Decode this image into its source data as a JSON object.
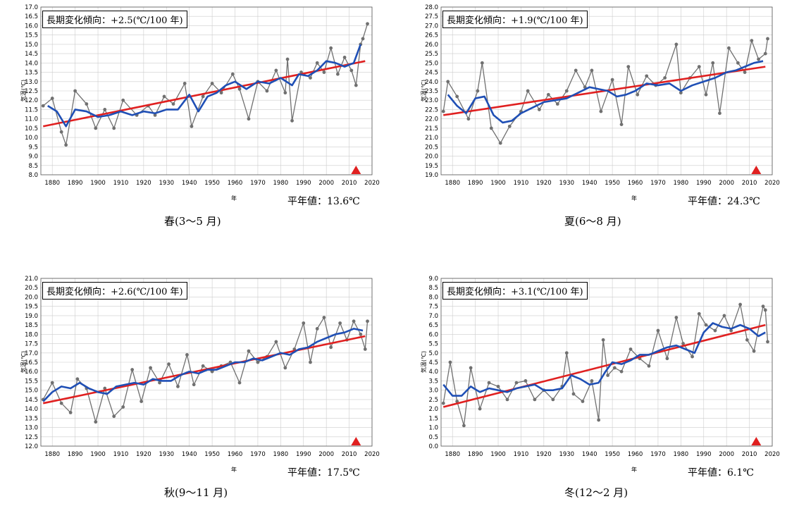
{
  "colors": {
    "observed": "#707070",
    "moving_avg": "#1f4fb5",
    "trend": "#e02020",
    "marker": "#e02020",
    "grid": "#cccccc"
  },
  "chart_data": [
    {
      "type": "line",
      "title": "春(3～5 月)",
      "trend_label": "長期変化傾向：+2.5(℃/100 年)",
      "normal_label": "平年値：13.6℃",
      "xlabel": "年",
      "ylabel": "気温(℃)",
      "xlim": [
        1875,
        2020
      ],
      "ylim": [
        8.0,
        17.0
      ],
      "ystep": 0.5,
      "xticks": [
        1880,
        1890,
        1900,
        1910,
        1920,
        1930,
        1940,
        1950,
        1960,
        1970,
        1980,
        1990,
        2000,
        2010,
        2020
      ],
      "trend_line": {
        "x": [
          1876,
          2017
        ],
        "y": [
          10.6,
          14.1
        ]
      },
      "normal_marker_x": 2013,
      "series": [
        {
          "name": "observed",
          "x": [
            1876,
            1880,
            1884,
            1886,
            1890,
            1895,
            1899,
            1903,
            1907,
            1911,
            1917,
            1922,
            1925,
            1929,
            1933,
            1938,
            1941,
            1946,
            1950,
            1954,
            1959,
            1962,
            1966,
            1970,
            1974,
            1978,
            1982,
            1983,
            1985,
            1989,
            1993,
            1996,
            1999,
            2002,
            2005,
            2008,
            2011,
            2013,
            2015,
            2016,
            2018
          ],
          "values": [
            11.7,
            12.1,
            10.3,
            9.6,
            12.5,
            11.8,
            10.5,
            11.5,
            10.5,
            12.0,
            11.2,
            11.7,
            11.2,
            12.2,
            11.8,
            12.9,
            10.6,
            12.2,
            12.9,
            12.4,
            13.4,
            12.6,
            11.0,
            13.0,
            12.5,
            13.6,
            12.4,
            14.2,
            10.9,
            13.5,
            13.2,
            14.0,
            13.5,
            14.8,
            13.4,
            14.3,
            13.6,
            12.8,
            15.0,
            15.3,
            16.1
          ]
        },
        {
          "name": "moving_avg",
          "x": [
            1878,
            1882,
            1886,
            1890,
            1895,
            1900,
            1905,
            1910,
            1915,
            1920,
            1925,
            1930,
            1935,
            1940,
            1944,
            1948,
            1952,
            1956,
            1960,
            1965,
            1970,
            1975,
            1980,
            1985,
            1988,
            1992,
            1996,
            2000,
            2004,
            2008,
            2012,
            2015
          ],
          "values": [
            11.7,
            11.4,
            10.6,
            11.5,
            11.4,
            11.1,
            11.2,
            11.4,
            11.2,
            11.4,
            11.3,
            11.5,
            11.5,
            12.3,
            11.4,
            12.2,
            12.4,
            12.8,
            13.0,
            12.6,
            13.0,
            12.9,
            13.2,
            12.8,
            13.4,
            13.3,
            13.6,
            14.1,
            14.0,
            13.8,
            14.0,
            15.0
          ]
        }
      ]
    },
    {
      "type": "line",
      "title": "夏(6～8 月)",
      "trend_label": "長期変化傾向：+1.9(℃/100 年)",
      "normal_label": "平年値：24.3℃",
      "xlabel": "年",
      "ylabel": "気温(℃)",
      "xlim": [
        1875,
        2020
      ],
      "ylim": [
        19.0,
        28.0
      ],
      "ystep": 0.5,
      "xticks": [
        1880,
        1890,
        1900,
        1910,
        1920,
        1930,
        1940,
        1950,
        1960,
        1970,
        1980,
        1990,
        2000,
        2010,
        2020
      ],
      "trend_line": {
        "x": [
          1876,
          2017
        ],
        "y": [
          22.2,
          24.8
        ]
      },
      "normal_marker_x": 2013,
      "series": [
        {
          "name": "observed",
          "x": [
            1876,
            1878,
            1882,
            1887,
            1891,
            1893,
            1897,
            1901,
            1905,
            1910,
            1913,
            1918,
            1922,
            1926,
            1930,
            1934,
            1938,
            1941,
            1945,
            1950,
            1954,
            1957,
            1961,
            1965,
            1969,
            1973,
            1978,
            1980,
            1984,
            1988,
            1991,
            1994,
            1997,
            2001,
            2005,
            2008,
            2011,
            2014,
            2017,
            2018
          ],
          "values": [
            22.4,
            24.0,
            23.2,
            22.0,
            23.5,
            25.0,
            21.5,
            20.7,
            21.6,
            22.4,
            23.5,
            22.5,
            23.3,
            22.8,
            23.5,
            24.6,
            23.7,
            24.6,
            22.4,
            24.1,
            21.7,
            24.8,
            23.3,
            24.3,
            23.8,
            24.2,
            26.0,
            23.4,
            24.2,
            24.8,
            23.3,
            25.0,
            22.3,
            25.8,
            25.0,
            24.5,
            26.2,
            25.2,
            25.5,
            26.3
          ]
        },
        {
          "name": "moving_avg",
          "x": [
            1878,
            1882,
            1886,
            1890,
            1894,
            1898,
            1902,
            1906,
            1910,
            1915,
            1920,
            1925,
            1930,
            1935,
            1940,
            1944,
            1948,
            1952,
            1956,
            1960,
            1965,
            1970,
            1975,
            1980,
            1985,
            1990,
            1995,
            2000,
            2004,
            2008,
            2012,
            2016
          ],
          "values": [
            23.3,
            22.7,
            22.3,
            23.1,
            23.2,
            22.2,
            21.8,
            21.9,
            22.3,
            22.6,
            22.9,
            23.0,
            23.1,
            23.4,
            23.7,
            23.6,
            23.5,
            23.2,
            23.3,
            23.5,
            23.9,
            23.8,
            23.9,
            23.5,
            23.8,
            24.0,
            24.2,
            24.5,
            24.6,
            24.8,
            25.0,
            25.1
          ]
        }
      ]
    },
    {
      "type": "line",
      "title": "秋(9～11 月)",
      "trend_label": "長期変化傾向：+2.6(℃/100 年)",
      "normal_label": "平年値：17.5℃",
      "xlabel": "年",
      "ylabel": "気温(℃)",
      "xlim": [
        1875,
        2020
      ],
      "ylim": [
        12.0,
        21.0
      ],
      "ystep": 0.5,
      "xticks": [
        1880,
        1890,
        1900,
        1910,
        1920,
        1930,
        1940,
        1950,
        1960,
        1970,
        1980,
        1990,
        2000,
        2010,
        2020
      ],
      "trend_line": {
        "x": [
          1876,
          2017
        ],
        "y": [
          14.3,
          17.9
        ]
      },
      "normal_marker_x": 2013,
      "series": [
        {
          "name": "observed",
          "x": [
            1876,
            1880,
            1884,
            1888,
            1891,
            1895,
            1899,
            1903,
            1907,
            1911,
            1915,
            1919,
            1923,
            1927,
            1931,
            1935,
            1939,
            1942,
            1946,
            1950,
            1954,
            1958,
            1962,
            1966,
            1970,
            1974,
            1978,
            1982,
            1986,
            1990,
            1993,
            1996,
            1999,
            2002,
            2006,
            2009,
            2012,
            2015,
            2017,
            2018
          ],
          "values": [
            14.5,
            15.4,
            14.3,
            13.8,
            15.6,
            15.1,
            13.3,
            15.1,
            13.6,
            14.1,
            16.1,
            14.4,
            16.2,
            15.4,
            16.4,
            15.2,
            16.9,
            15.3,
            16.3,
            16.0,
            16.3,
            16.5,
            15.4,
            17.1,
            16.5,
            16.8,
            17.6,
            16.2,
            17.2,
            18.6,
            16.5,
            18.3,
            18.9,
            17.3,
            18.6,
            17.7,
            18.7,
            18.0,
            17.2,
            18.7
          ]
        },
        {
          "name": "moving_avg",
          "x": [
            1876,
            1880,
            1884,
            1888,
            1892,
            1896,
            1900,
            1904,
            1908,
            1912,
            1916,
            1920,
            1924,
            1928,
            1932,
            1936,
            1940,
            1944,
            1948,
            1952,
            1956,
            1960,
            1964,
            1968,
            1972,
            1976,
            1980,
            1984,
            1988,
            1992,
            1996,
            2000,
            2004,
            2008,
            2012,
            2016
          ],
          "values": [
            14.4,
            14.9,
            15.2,
            15.1,
            15.4,
            15.1,
            14.9,
            14.8,
            15.2,
            15.3,
            15.4,
            15.3,
            15.6,
            15.5,
            15.5,
            15.8,
            16.0,
            15.9,
            16.1,
            16.1,
            16.3,
            16.5,
            16.5,
            16.7,
            16.6,
            16.8,
            17.0,
            16.9,
            17.2,
            17.3,
            17.6,
            17.8,
            18.0,
            18.1,
            18.3,
            18.2
          ]
        }
      ]
    },
    {
      "type": "line",
      "title": "冬(12～2 月)",
      "trend_label": "長期変化傾向：+3.1(℃/100 年)",
      "normal_label": "平年値：6.1℃",
      "xlabel": "年",
      "ylabel": "気温(℃)",
      "xlim": [
        1875,
        2020
      ],
      "ylim": [
        0.0,
        9.0
      ],
      "ystep": 0.5,
      "xticks": [
        1880,
        1890,
        1900,
        1910,
        1920,
        1930,
        1940,
        1950,
        1960,
        1970,
        1980,
        1990,
        2000,
        2010,
        2020
      ],
      "trend_line": {
        "x": [
          1876,
          2017
        ],
        "y": [
          2.1,
          6.5
        ]
      },
      "normal_marker_x": 2013,
      "series": [
        {
          "name": "observed",
          "x": [
            1876,
            1879,
            1882,
            1885,
            1888,
            1892,
            1896,
            1900,
            1904,
            1908,
            1912,
            1916,
            1920,
            1924,
            1928,
            1930,
            1933,
            1937,
            1941,
            1944,
            1946,
            1948,
            1951,
            1954,
            1958,
            1962,
            1966,
            1970,
            1974,
            1978,
            1981,
            1985,
            1988,
            1991,
            1995,
            1999,
            2002,
            2006,
            2009,
            2012,
            2016,
            2017,
            2018
          ],
          "values": [
            2.3,
            4.5,
            2.4,
            1.1,
            4.2,
            2.0,
            3.4,
            3.2,
            2.5,
            3.4,
            3.5,
            2.5,
            3.0,
            2.5,
            3.2,
            5.0,
            2.8,
            2.4,
            3.5,
            1.4,
            5.7,
            3.8,
            4.2,
            4.0,
            5.2,
            4.7,
            4.3,
            6.2,
            4.7,
            6.9,
            5.5,
            4.8,
            7.1,
            6.5,
            6.2,
            7.0,
            6.2,
            7.6,
            5.7,
            5.1,
            7.5,
            7.3,
            5.6
          ]
        },
        {
          "name": "moving_avg",
          "x": [
            1876,
            1880,
            1884,
            1888,
            1892,
            1896,
            1900,
            1904,
            1908,
            1912,
            1916,
            1920,
            1924,
            1928,
            1932,
            1936,
            1940,
            1944,
            1947,
            1950,
            1954,
            1958,
            1962,
            1966,
            1970,
            1974,
            1978,
            1982,
            1986,
            1990,
            1994,
            1998,
            2002,
            2006,
            2010,
            2014,
            2017
          ],
          "values": [
            3.3,
            2.7,
            2.7,
            3.2,
            2.9,
            3.1,
            3.0,
            2.9,
            3.1,
            3.2,
            3.3,
            3.0,
            3.0,
            3.1,
            3.8,
            3.6,
            3.3,
            3.4,
            4.0,
            4.5,
            4.4,
            4.6,
            4.9,
            4.9,
            5.1,
            5.3,
            5.4,
            5.2,
            5.0,
            6.1,
            6.6,
            6.4,
            6.3,
            6.5,
            6.3,
            5.9,
            6.1
          ]
        }
      ]
    }
  ]
}
